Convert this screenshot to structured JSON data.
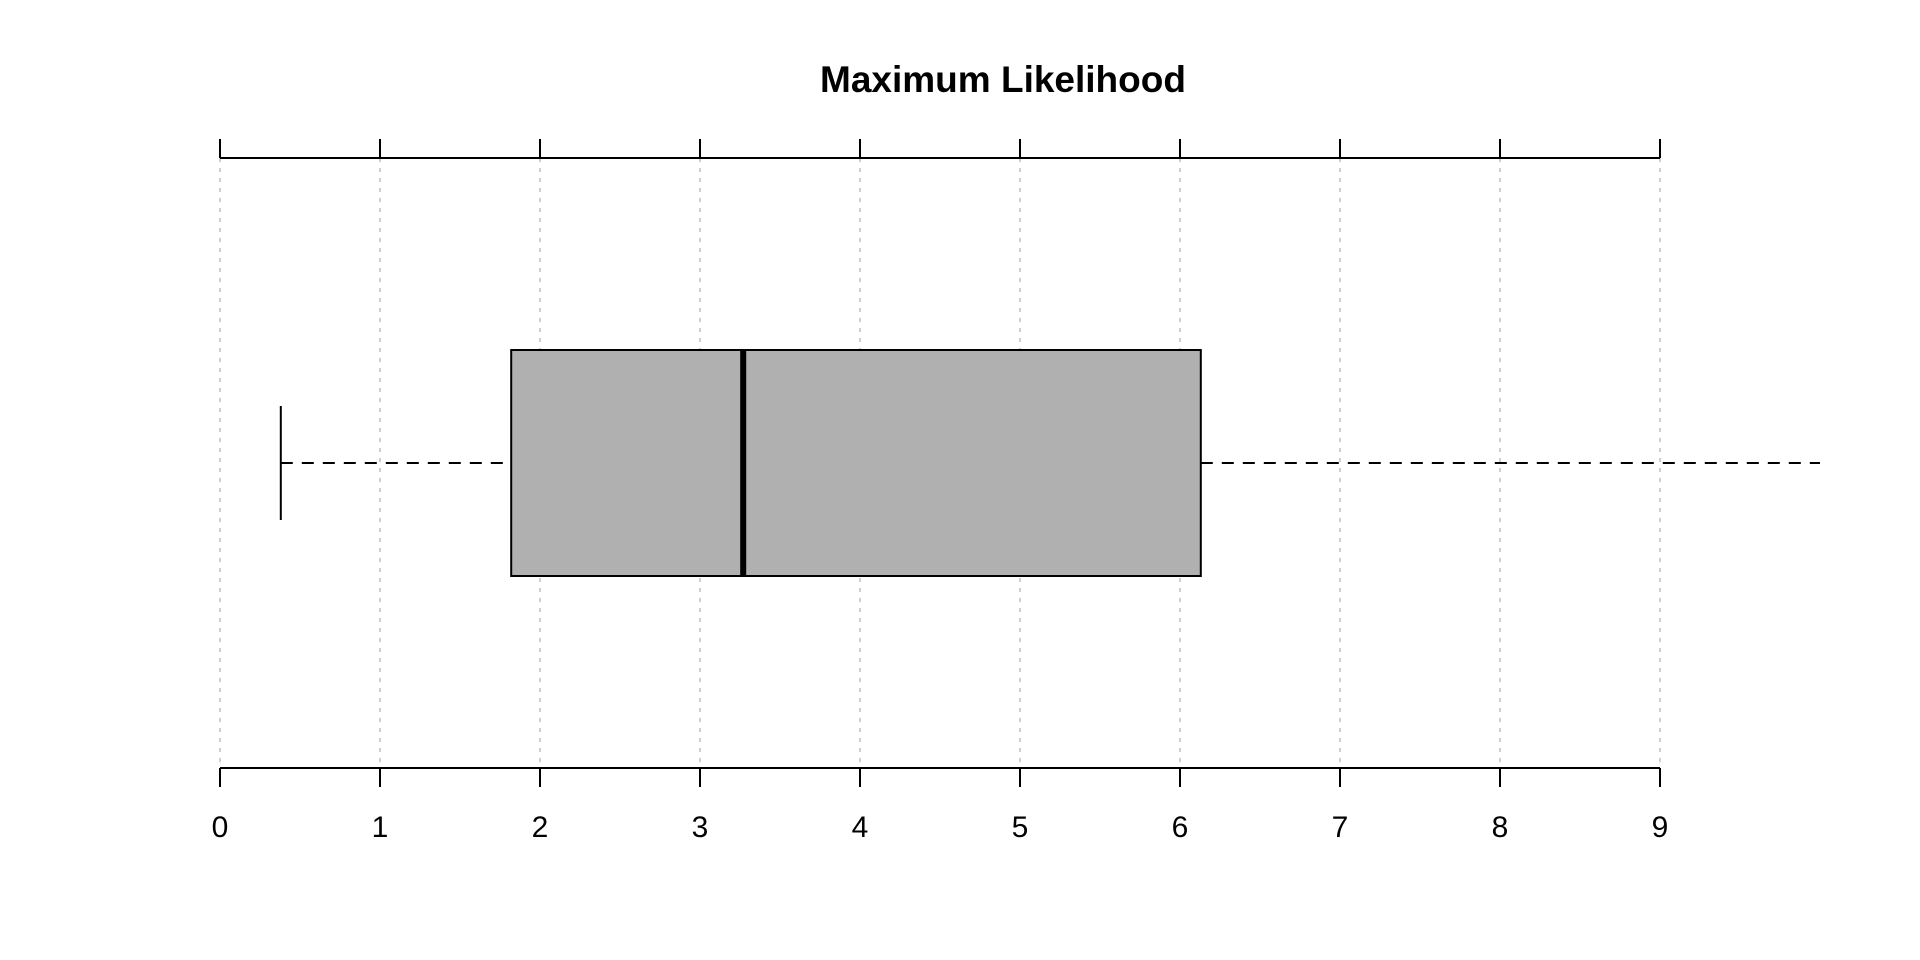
{
  "chart_data": {
    "type": "boxplot",
    "title": "Maximum Likelihood",
    "orientation": "horizontal",
    "xlim": [
      0,
      9
    ],
    "x_ticks": [
      0,
      1,
      2,
      3,
      4,
      5,
      6,
      7,
      8,
      9
    ],
    "x_tick_labels": [
      "0",
      "1",
      "2",
      "3",
      "4",
      "5",
      "6",
      "7",
      "8",
      "9"
    ],
    "grid": true,
    "box": {
      "whisker_low": 0.38,
      "q1": 1.82,
      "median": 3.27,
      "q3": 6.13,
      "whisker_high": 10.0
    },
    "colors": {
      "box_fill": "#b0b0b0",
      "grid": "#bfbfbf",
      "stroke": "#000000"
    }
  }
}
